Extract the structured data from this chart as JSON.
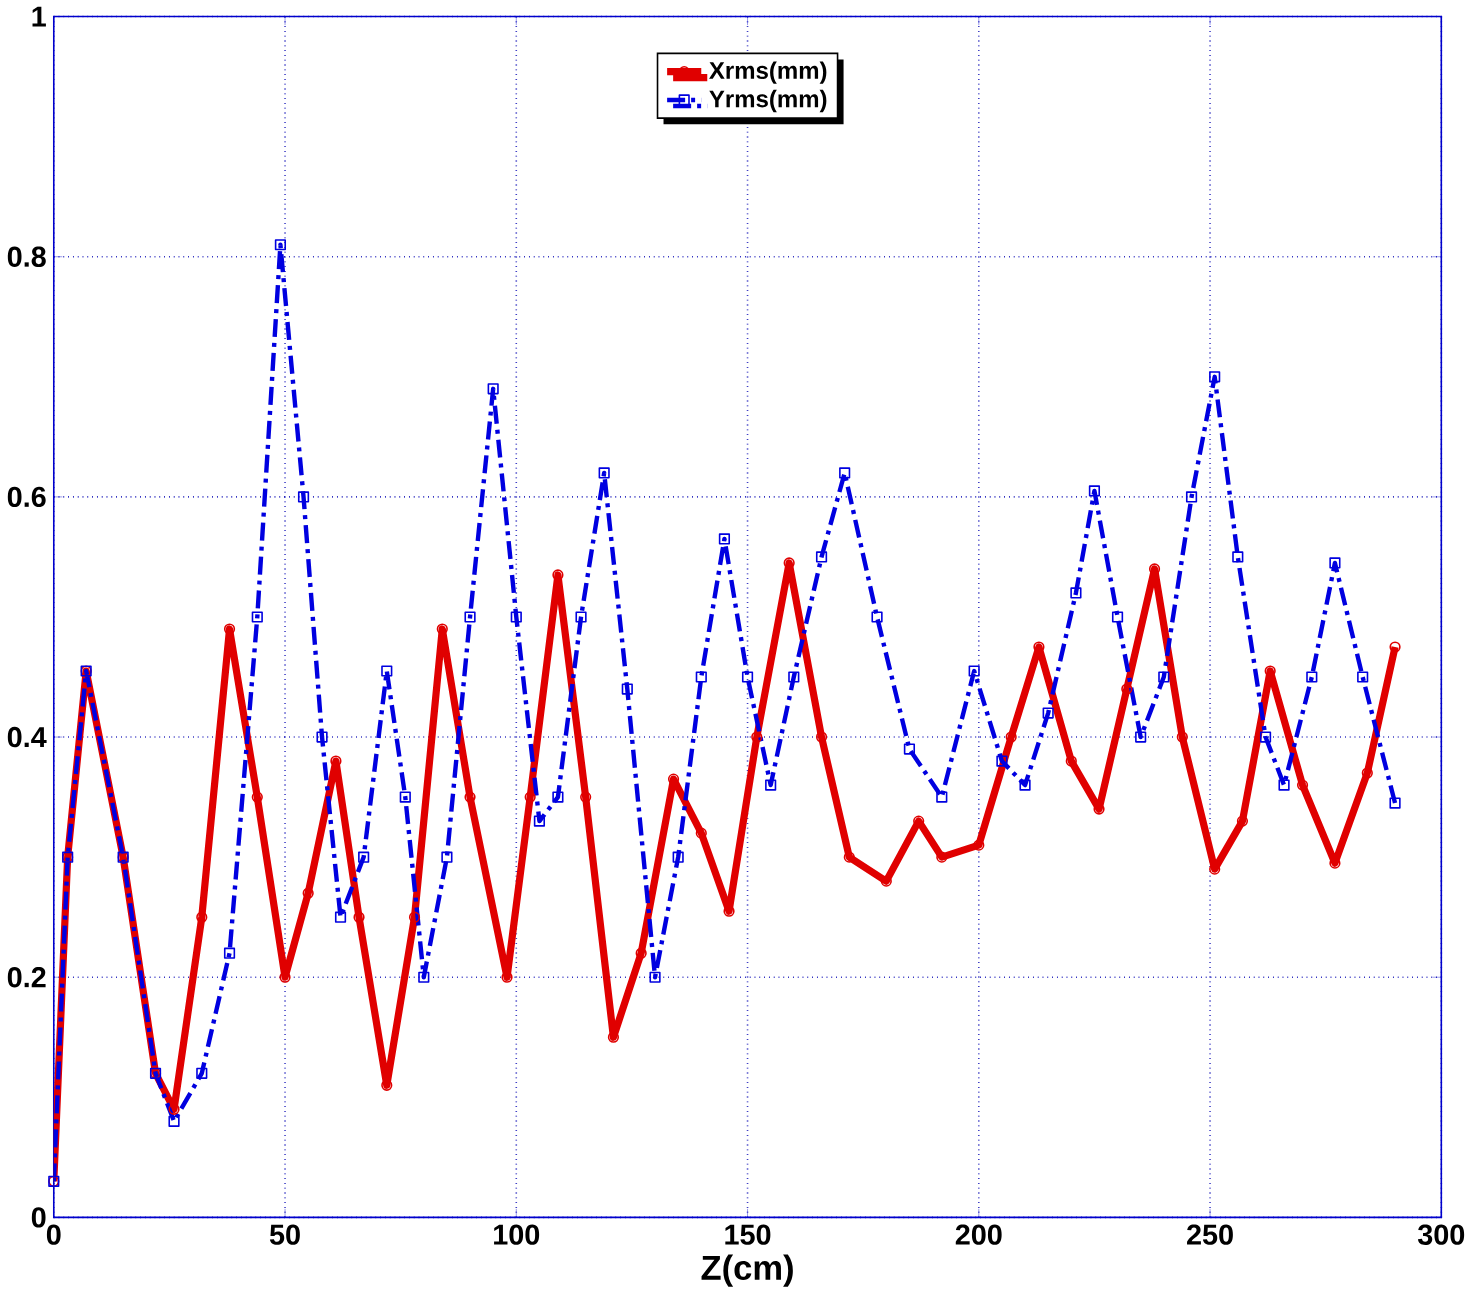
{
  "chart_data": {
    "type": "line",
    "xlabel": "Z(cm)",
    "xlim": [
      0,
      300
    ],
    "ylim": [
      0,
      1
    ],
    "xticks": [
      0,
      50,
      100,
      150,
      200,
      250,
      300
    ],
    "yticks": [
      0,
      0.2,
      0.4,
      0.6,
      0.8,
      1
    ],
    "grid": true,
    "legend": "top",
    "series": [
      {
        "name": "Xrms(mm)",
        "color": "#e00000",
        "marker": "circle",
        "line_style": "solid",
        "x": [
          0,
          3,
          7,
          15,
          22,
          26,
          32,
          38,
          44,
          50,
          55,
          61,
          66,
          72,
          78,
          84,
          90,
          98,
          103,
          109,
          115,
          121,
          127,
          134,
          140,
          146,
          152,
          159,
          166,
          172,
          180,
          187,
          192,
          200,
          207,
          213,
          220,
          226,
          232,
          238,
          244,
          251,
          257,
          263,
          270,
          277,
          284,
          290
        ],
        "values": [
          0.03,
          0.3,
          0.455,
          0.3,
          0.12,
          0.09,
          0.25,
          0.49,
          0.35,
          0.2,
          0.27,
          0.38,
          0.25,
          0.11,
          0.25,
          0.49,
          0.35,
          0.2,
          0.35,
          0.535,
          0.35,
          0.15,
          0.22,
          0.365,
          0.32,
          0.255,
          0.4,
          0.545,
          0.4,
          0.3,
          0.28,
          0.33,
          0.3,
          0.31,
          0.4,
          0.475,
          0.38,
          0.34,
          0.44,
          0.54,
          0.4,
          0.29,
          0.33,
          0.455,
          0.36,
          0.295,
          0.37,
          0.475
        ]
      },
      {
        "name": "Yrms(mm)",
        "color": "#0000e0",
        "marker": "square",
        "line_style": "dashed",
        "x": [
          0,
          3,
          7,
          15,
          22,
          26,
          32,
          38,
          44,
          49,
          54,
          58,
          62,
          67,
          72,
          76,
          80,
          85,
          90,
          95,
          100,
          105,
          109,
          114,
          119,
          124,
          130,
          135,
          140,
          145,
          150,
          155,
          160,
          166,
          171,
          178,
          185,
          192,
          199,
          205,
          210,
          215,
          221,
          225,
          230,
          235,
          240,
          246,
          251,
          256,
          262,
          266,
          272,
          277,
          283,
          290
        ],
        "values": [
          0.03,
          0.3,
          0.455,
          0.3,
          0.12,
          0.08,
          0.12,
          0.22,
          0.5,
          0.81,
          0.6,
          0.4,
          0.25,
          0.3,
          0.455,
          0.35,
          0.2,
          0.3,
          0.5,
          0.69,
          0.5,
          0.33,
          0.35,
          0.5,
          0.62,
          0.44,
          0.2,
          0.3,
          0.45,
          0.565,
          0.45,
          0.36,
          0.45,
          0.55,
          0.62,
          0.5,
          0.39,
          0.35,
          0.455,
          0.38,
          0.36,
          0.42,
          0.52,
          0.605,
          0.5,
          0.4,
          0.45,
          0.6,
          0.7,
          0.55,
          0.4,
          0.36,
          0.45,
          0.545,
          0.45,
          0.345
        ]
      }
    ]
  }
}
